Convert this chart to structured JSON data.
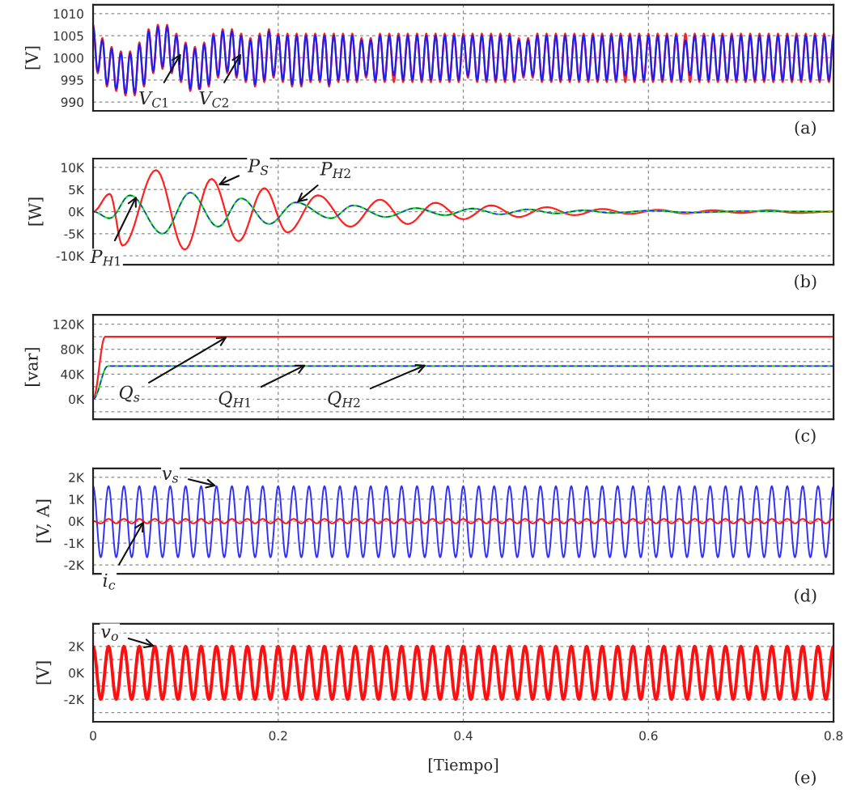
{
  "chart_data": [
    {
      "type": "line",
      "ylabel": "[V]",
      "xlim": [
        0,
        0.8
      ],
      "ylim": [
        988,
        1012
      ],
      "xticks": [
        0,
        0.2,
        0.4,
        0.6,
        0.8
      ],
      "yticks": [
        990,
        995,
        1000,
        1005,
        1010
      ],
      "grid": true,
      "tick_labels": "y",
      "x": [
        0,
        0.005,
        0.01,
        0.015,
        0.02,
        0.025,
        0.03,
        0.035,
        0.04,
        0.045,
        0.05,
        0.055,
        0.06,
        0.065,
        0.07,
        0.075,
        0.08,
        0.085,
        0.09,
        0.095,
        0.1,
        0.105,
        0.11,
        0.115,
        0.12,
        0.125,
        0.13,
        0.135,
        0.14,
        0.145,
        0.15,
        0.155,
        0.16,
        0.165,
        0.17,
        0.175,
        0.18,
        0.185,
        0.19,
        0.195,
        0.2,
        0.205,
        0.21,
        0.215,
        0.22,
        0.225,
        0.23,
        0.235,
        0.24,
        0.245,
        0.25,
        0.255,
        0.26,
        0.265,
        0.27,
        0.275,
        0.28,
        0.285,
        0.29,
        0.295,
        0.3,
        0.305,
        0.31,
        0.315,
        0.32,
        0.325,
        0.33,
        0.335,
        0.34,
        0.345,
        0.35,
        0.355,
        0.36,
        0.365,
        0.37,
        0.375,
        0.38,
        0.385,
        0.39,
        0.395,
        0.4,
        0.405,
        0.41,
        0.415,
        0.42,
        0.425,
        0.43,
        0.435,
        0.44,
        0.445,
        0.45,
        0.455,
        0.46,
        0.465,
        0.47,
        0.475,
        0.48,
        0.485,
        0.49,
        0.495,
        0.5,
        0.505,
        0.51,
        0.515,
        0.52,
        0.525,
        0.53,
        0.535,
        0.54,
        0.545,
        0.55,
        0.555,
        0.56,
        0.565,
        0.57,
        0.575,
        0.58,
        0.585,
        0.59,
        0.595,
        0.6,
        0.605,
        0.61,
        0.615,
        0.62,
        0.625,
        0.63,
        0.635,
        0.64,
        0.645,
        0.65,
        0.655,
        0.66,
        0.665,
        0.67,
        0.675,
        0.68,
        0.685,
        0.69,
        0.695,
        0.7,
        0.705,
        0.71,
        0.715,
        0.72,
        0.725,
        0.73,
        0.735,
        0.74,
        0.745,
        0.75,
        0.755,
        0.76,
        0.765,
        0.77,
        0.775,
        0.78,
        0.785,
        0.79,
        0.795,
        0.8
      ],
      "series": [
        {
          "color": "#ff2020",
          "values": [
            1007.5,
            996.5,
            1004.5,
            993.5,
            1002.5,
            992.5,
            1001.5,
            991.5,
            1001.5,
            991.5,
            1003.5,
            993.5,
            1006.5,
            996.5,
            1007.5,
            997.5,
            1007.5,
            996.5,
            1005.5,
            994.5,
            1003.5,
            992.5,
            1002.5,
            992.5,
            1003.5,
            993.5,
            1005.5,
            995.5,
            1006.5,
            996.5,
            1006.5,
            995.5,
            1005.5,
            994.5,
            1004.5,
            993.5,
            1005.5,
            994.5,
            1006.5,
            995.5,
            1005.5,
            994.5,
            1005.5,
            993.5,
            1005.5,
            993.5,
            1005.5,
            994.5,
            1005.5,
            994.5,
            1005.5,
            993.5,
            1005.5,
            994.5,
            1005.5,
            994.5,
            1005.5,
            994.5,
            1004.5,
            995.5,
            1004.5,
            994.5,
            1005.5,
            994.5,
            1005.5,
            994.5,
            1005.5,
            994.5,
            1005.5,
            994.5,
            1005.5,
            994.5,
            1005.5,
            994.5,
            1005.5,
            994.5,
            1005.5,
            994.5,
            1005.5,
            994.5,
            1005.5,
            995.5,
            1005.5,
            994.5,
            1005.5,
            994.5,
            1005.5,
            994.5,
            1005.5,
            994.5,
            1005.5,
            994.5,
            1004.5,
            995.5,
            1004.5,
            995.5,
            1005.5,
            994.5,
            1005.5,
            994.5,
            1005.5,
            994.5,
            1005.5,
            994.5,
            1005.5,
            994.5,
            1005.5,
            994.5,
            1005.5,
            994.5,
            1005.5,
            994.5,
            1005.5,
            994.5,
            1005.5,
            994.5,
            1005.5,
            994.5,
            1005.5,
            994.5,
            1005.5,
            994.5,
            1005.5,
            994.5,
            1005.5,
            994.5,
            1005.5,
            994.5,
            1005.5,
            994.5,
            1005.5,
            994.5,
            1005.5,
            994.5,
            1005.5,
            994.5,
            1005.5,
            994.5,
            1005.5,
            994.5,
            1005.5,
            994.5,
            1005.5,
            994.5,
            1005.5,
            994.5,
            1005.5,
            994.5,
            1005.5,
            994.5,
            1005.5,
            994.5,
            1005.5,
            994.5,
            1005.5,
            994.5,
            1005.5,
            994.5,
            1005.5,
            994.5,
            1005.5
          ]
        },
        {
          "color": "#2020ee",
          "values": [
            1007,
            997,
            1004,
            994,
            1002,
            993,
            1001,
            992,
            1001,
            992,
            1003,
            994,
            1006,
            997,
            1007,
            998,
            1007,
            997,
            1005,
            995,
            1003,
            993,
            1002,
            993,
            1003,
            994,
            1005,
            996,
            1006,
            997,
            1006,
            996,
            1005,
            995,
            1004,
            994,
            1005,
            995,
            1006,
            996,
            1005,
            995,
            1005,
            994,
            1005,
            994,
            1005,
            995,
            1005,
            995,
            1005,
            994,
            1005,
            995,
            1005,
            995,
            1005,
            995,
            1004,
            996,
            1004,
            995,
            1005,
            995,
            1005,
            996,
            1005,
            995,
            1005,
            995,
            1005,
            995,
            1005,
            995,
            1005,
            995,
            1005,
            995,
            1005,
            995,
            1005,
            996,
            1005,
            995,
            1005,
            995,
            1005,
            995,
            1005,
            995,
            1005,
            995,
            1004,
            996,
            1004,
            996,
            1005,
            995,
            1005,
            995,
            1005,
            995,
            1005,
            995,
            1005,
            995,
            1005,
            995,
            1005,
            995,
            1005,
            995,
            1005,
            995,
            1005,
            996,
            1005,
            995,
            1005,
            995,
            1005,
            995,
            1005,
            995,
            1005,
            995,
            1005,
            995,
            1004,
            996,
            1005,
            995,
            1005,
            995,
            1005,
            995,
            1005,
            995,
            1005,
            995,
            1005,
            995,
            1005,
            995,
            1005,
            995,
            1005,
            995,
            1005,
            995,
            1005,
            995,
            1005,
            995,
            1005,
            995,
            1005,
            995,
            1005,
            995,
            1005
          ]
        }
      ],
      "annotations": [
        {
          "text": "V$_{C1}$",
          "x": 0.095,
          "y": 1001
        },
        {
          "text": "V$_{C2}$",
          "x": 0.16,
          "y": 1001
        },
        "(a)"
      ]
    },
    {
      "type": "line",
      "ylabel": "[W]",
      "xlim": [
        0,
        0.8
      ],
      "ylim": [
        -12000,
        12000
      ],
      "xticks": [
        0,
        0.2,
        0.4,
        0.6,
        0.8
      ],
      "yticks": [
        {
          "value": -10000,
          "label": "-10K"
        },
        {
          "value": -5000,
          "label": "-5K"
        },
        {
          "value": 0,
          "label": "0K"
        },
        {
          "value": 5000,
          "label": "5K"
        },
        {
          "value": 10000,
          "label": "10K"
        }
      ],
      "grid": true,
      "tick_labels": "y",
      "series": [
        {
          "color": "#ff2020",
          "x": [
            0,
            0.018,
            0.032,
            0.068,
            0.099,
            0.128,
            0.157,
            0.185,
            0.21,
            0.243,
            0.278,
            0.31,
            0.34,
            0.37,
            0.4,
            0.43,
            0.46,
            0.49,
            0.52,
            0.55,
            0.58,
            0.61,
            0.64,
            0.67,
            0.7,
            0.73,
            0.76,
            0.8
          ],
          "values": [
            0,
            4000,
            -7700,
            9400,
            -8600,
            7400,
            -6700,
            5300,
            -4700,
            3700,
            -3400,
            2700,
            -2800,
            2000,
            -1700,
            1400,
            -1200,
            1000,
            -800,
            600,
            -500,
            400,
            -400,
            300,
            -300,
            300,
            -300,
            0
          ]
        },
        {
          "color": "#22dd22",
          "x": [
            0,
            0.018,
            0.04,
            0.075,
            0.105,
            0.135,
            0.16,
            0.19,
            0.219,
            0.257,
            0.281,
            0.316,
            0.349,
            0.38,
            0.41,
            0.44,
            0.47,
            0.5,
            0.53,
            0.56,
            0.6,
            0.65,
            0.7,
            0.8
          ],
          "values": [
            0,
            -1500,
            3700,
            -5000,
            4300,
            -3400,
            3000,
            -2800,
            2100,
            -1500,
            1400,
            -1200,
            800,
            -800,
            700,
            -600,
            500,
            -400,
            300,
            -300,
            200,
            -200,
            100,
            0
          ]
        },
        {
          "color": "#2020ee",
          "line_style": "dashed",
          "x": [
            0,
            0.018,
            0.04,
            0.075,
            0.105,
            0.135,
            0.16,
            0.19,
            0.219,
            0.257,
            0.281,
            0.316,
            0.349,
            0.38,
            0.41,
            0.44,
            0.47,
            0.5,
            0.53,
            0.56,
            0.6,
            0.65,
            0.7,
            0.8
          ],
          "values": [
            0,
            -1500,
            3700,
            -5000,
            4300,
            -3400,
            3000,
            -2800,
            2100,
            -1500,
            1400,
            -1200,
            800,
            -800,
            700,
            -600,
            500,
            -400,
            300,
            -300,
            200,
            -200,
            100,
            0
          ]
        }
      ],
      "annotations": [
        {
          "text": "P$_{S}$",
          "x": 0.135,
          "y": 6000
        },
        {
          "text": "P$_{H2}$",
          "x": 0.22,
          "y": 2000
        },
        {
          "text": "P$_{H1}$",
          "x": 0.047,
          "y": 3500
        },
        "(b)"
      ]
    },
    {
      "type": "line",
      "ylabel": "[var]",
      "xlim": [
        0,
        0.8
      ],
      "ylim": [
        -32000,
        135000
      ],
      "xticks": [
        0,
        0.2,
        0.4,
        0.6,
        0.8
      ],
      "yticks": [
        {
          "value": -20000,
          "label": null
        },
        {
          "value": 0,
          "label": "0K"
        },
        {
          "value": 20000,
          "label": null
        },
        {
          "value": 40000,
          "label": "40K"
        },
        {
          "value": 60000,
          "label": null
        },
        {
          "value": 80000,
          "label": "80K"
        },
        {
          "value": 100000,
          "label": null
        },
        {
          "value": 120000,
          "label": "120K"
        }
      ],
      "grid": true,
      "tick_labels": "y",
      "series": [
        {
          "color": "#ff2020",
          "x": [
            0,
            0.013,
            0.8
          ],
          "values": [
            0,
            100000,
            100000
          ]
        },
        {
          "color": "#22dd22",
          "x": [
            0,
            0.016,
            0.8
          ],
          "values": [
            0,
            53000,
            53000
          ]
        },
        {
          "color": "#2020ee",
          "line_style": "dashed",
          "x": [
            0,
            0.016,
            0.8
          ],
          "values": [
            0,
            53000,
            53000
          ]
        }
      ],
      "annotations": [
        {
          "text": "Q$_{s}$",
          "x": 0.145,
          "y": 100000
        },
        {
          "text": "Q$_{H1}$",
          "x": 0.23,
          "y": 55000
        },
        {
          "text": "Q$_{H2}$",
          "x": 0.36,
          "y": 55000
        },
        "(c)"
      ]
    },
    {
      "type": "line",
      "ylabel": "[V, A]",
      "xlim": [
        0,
        0.8
      ],
      "ylim": [
        -2400,
        2400
      ],
      "xticks": [
        0,
        0.2,
        0.4,
        0.6,
        0.8
      ],
      "yticks": [
        {
          "value": -2000,
          "label": "-2K"
        },
        {
          "value": -1000,
          "label": "-1K"
        },
        {
          "value": 0,
          "label": "0K"
        },
        {
          "value": 1000,
          "label": "1K"
        },
        {
          "value": 2000,
          "label": "2K"
        }
      ],
      "grid": true,
      "tick_labels": "y",
      "x": [
        0,
        0.0083,
        0.0167,
        0.025,
        0.0333,
        0.0417,
        0.05,
        0.0583,
        0.0667,
        0.075,
        0.0833,
        0.0917,
        0.1,
        0.1083,
        0.1167,
        0.125,
        0.1333,
        0.1417,
        0.15,
        0.1583,
        0.1667,
        0.175,
        0.1833,
        0.1917,
        0.2,
        0.2083,
        0.2167,
        0.225,
        0.2333,
        0.2417,
        0.25,
        0.2583,
        0.2667,
        0.275,
        0.2833,
        0.2917,
        0.3,
        0.3083,
        0.3167,
        0.325,
        0.3333,
        0.3417,
        0.35,
        0.3583,
        0.3667,
        0.375,
        0.3833,
        0.3917,
        0.4,
        0.4083,
        0.4167,
        0.425,
        0.4333,
        0.4417,
        0.45,
        0.4583,
        0.4667,
        0.475,
        0.4833,
        0.4917,
        0.5,
        0.5083,
        0.5167,
        0.525,
        0.5333,
        0.5417,
        0.55,
        0.5583,
        0.5667,
        0.575,
        0.5833,
        0.5917,
        0.6,
        0.6083,
        0.6167,
        0.625,
        0.6333,
        0.6417,
        0.65,
        0.6583,
        0.6667,
        0.675,
        0.6833,
        0.6917,
        0.7,
        0.7083,
        0.7167,
        0.725,
        0.7333,
        0.7417,
        0.75,
        0.7583,
        0.7667,
        0.775,
        0.7833,
        0.7917,
        0.8
      ],
      "series": [
        {
          "color": "#3030ff",
          "values": [
            1600,
            -1650,
            1600,
            -1650,
            1600,
            -1650,
            1600,
            -1650,
            1600,
            -1650,
            1600,
            -1650,
            1600,
            -1650,
            1600,
            -1650,
            1600,
            -1650,
            1600,
            -1650,
            1600,
            -1650,
            1600,
            -1650,
            1600,
            -1650,
            1600,
            -1650,
            1600,
            -1650,
            1600,
            -1650,
            1600,
            -1650,
            1600,
            -1650,
            1600,
            -1650,
            1600,
            -1650,
            1600,
            -1650,
            1600,
            -1650,
            1600,
            -1650,
            1600,
            -1650,
            1600,
            -1650,
            1600,
            -1650,
            1600,
            -1650,
            1600,
            -1650,
            1600,
            -1650,
            1600,
            -1650,
            1600,
            -1650,
            1600,
            -1650,
            1600,
            -1650,
            1600,
            -1650,
            1600,
            -1650,
            1600,
            -1650,
            1600,
            -1650,
            1600,
            -1650,
            1600,
            -1650,
            1600,
            -1650,
            1600,
            -1650,
            1600,
            -1650,
            1600,
            -1650,
            1600,
            -1650,
            1600,
            -1650,
            1600,
            -1650,
            1600,
            -1650,
            1600,
            -1650,
            1600
          ]
        },
        {
          "color": "#ff1010",
          "values": [
            0,
            -100,
            100,
            -100,
            100,
            -100,
            100,
            -100,
            100,
            -100,
            100,
            -100,
            100,
            -100,
            100,
            -100,
            100,
            -100,
            100,
            -100,
            100,
            -100,
            100,
            -100,
            100,
            -100,
            100,
            -100,
            100,
            -100,
            100,
            -100,
            100,
            -100,
            100,
            -100,
            100,
            -100,
            100,
            -100,
            100,
            -100,
            100,
            -100,
            100,
            -100,
            100,
            -100,
            100,
            -100,
            100,
            -100,
            100,
            -100,
            100,
            -100,
            100,
            -100,
            100,
            -100,
            100,
            -100,
            100,
            -100,
            100,
            -100,
            100,
            -100,
            100,
            -100,
            100,
            -100,
            100,
            -100,
            100,
            -100,
            100,
            -100,
            100,
            -100,
            100,
            -100,
            100,
            -100,
            100,
            -100,
            100,
            -100,
            100,
            -100,
            100,
            -100,
            100,
            -100,
            100,
            -100,
            100
          ]
        }
      ],
      "annotations": [
        {
          "text": "v$_{s}$",
          "x": 0.1333,
          "y": 1600
        },
        {
          "text": "i$_{c}$",
          "x": 0.055,
          "y": 0
        },
        "(d)"
      ]
    },
    {
      "type": "line",
      "ylabel": "[V]",
      "xlabel": "[Tiempo]",
      "xlim": [
        0,
        0.8
      ],
      "ylim": [
        -3700,
        3700
      ],
      "xticks": [
        0,
        0.2,
        0.4,
        0.6,
        0.8
      ],
      "yticks": [
        {
          "value": -3000,
          "label": null
        },
        {
          "value": -2000,
          "label": "-2K"
        },
        {
          "value": -1000,
          "label": null
        },
        {
          "value": 0,
          "label": "0K"
        },
        {
          "value": 1000,
          "label": null
        },
        {
          "value": 2000,
          "label": "2K"
        },
        {
          "value": 3000,
          "label": null
        }
      ],
      "grid": true,
      "x": [
        0,
        0.0083,
        0.0167,
        0.025,
        0.0333,
        0.0417,
        0.05,
        0.0583,
        0.0667,
        0.075,
        0.0833,
        0.0917,
        0.1,
        0.1083,
        0.1167,
        0.125,
        0.1333,
        0.1417,
        0.15,
        0.1583,
        0.1667,
        0.175,
        0.1833,
        0.1917,
        0.2,
        0.2083,
        0.2167,
        0.225,
        0.2333,
        0.2417,
        0.25,
        0.2583,
        0.2667,
        0.275,
        0.2833,
        0.2917,
        0.3,
        0.3083,
        0.3167,
        0.325,
        0.3333,
        0.3417,
        0.35,
        0.3583,
        0.3667,
        0.375,
        0.3833,
        0.3917,
        0.4,
        0.4083,
        0.4167,
        0.425,
        0.4333,
        0.4417,
        0.45,
        0.4583,
        0.4667,
        0.475,
        0.4833,
        0.4917,
        0.5,
        0.5083,
        0.5167,
        0.525,
        0.5333,
        0.5417,
        0.55,
        0.5583,
        0.5667,
        0.575,
        0.5833,
        0.5917,
        0.6,
        0.6083,
        0.6167,
        0.625,
        0.6333,
        0.6417,
        0.65,
        0.6583,
        0.6667,
        0.675,
        0.6833,
        0.6917,
        0.7,
        0.7083,
        0.7167,
        0.725,
        0.7333,
        0.7417,
        0.75,
        0.7583,
        0.7667,
        0.775,
        0.7833,
        0.7917,
        0.8
      ],
      "series": [
        {
          "color": "#ff1010",
          "values": [
            2000,
            -2000,
            2000,
            -2000,
            2000,
            -2000,
            2000,
            -2000,
            2000,
            -2000,
            2000,
            -2000,
            2000,
            -2000,
            2000,
            -2000,
            2000,
            -2000,
            2000,
            -2000,
            2000,
            -2000,
            2000,
            -2000,
            2000,
            -2000,
            2000,
            -2000,
            2000,
            -2000,
            2000,
            -2000,
            2000,
            -2000,
            2000,
            -2000,
            2000,
            -2000,
            2000,
            -2000,
            2000,
            -2000,
            2000,
            -2000,
            2000,
            -2000,
            2000,
            -2000,
            2000,
            -2000,
            2000,
            -2000,
            2000,
            -2000,
            2000,
            -2000,
            2000,
            -2000,
            2000,
            -2000,
            2000,
            -2000,
            2000,
            -2000,
            2000,
            -2000,
            2000,
            -2000,
            2000,
            -2000,
            2000,
            -2000,
            2000,
            -2000,
            2000,
            -2000,
            2000,
            -2000,
            2000,
            -2000,
            2000,
            -2000,
            2000,
            -2000,
            2000,
            -2000,
            2000,
            -2000,
            2000,
            -2000,
            2000,
            -2000,
            2000,
            -2000,
            2000,
            -2000,
            2000
          ]
        }
      ],
      "annotations": [
        {
          "text": "v$_{o}$",
          "x": 0.0667,
          "y": 2000
        },
        "(e)"
      ]
    }
  ]
}
